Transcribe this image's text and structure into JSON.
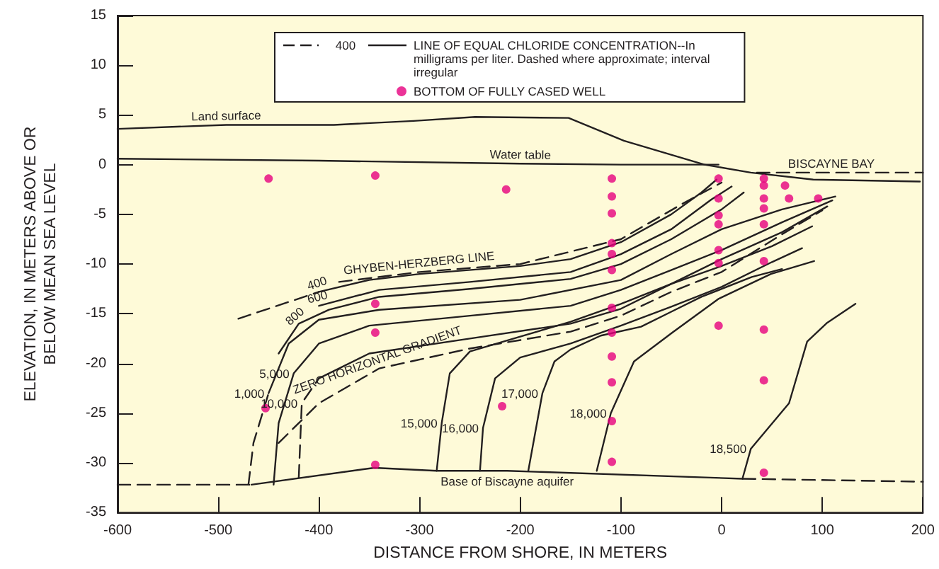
{
  "chart_data": {
    "type": "line",
    "xlabel": "DISTANCE FROM SHORE, IN METERS",
    "ylabel": "ELEVATION, IN METERS ABOVE OR BELOW MEAN SEA LEVEL",
    "xlim": [
      -600,
      200
    ],
    "xticks": [
      -600,
      -500,
      -400,
      -300,
      -200,
      -100,
      0,
      100,
      200
    ],
    "ylim": [
      -35,
      15
    ],
    "yticks": [
      -35,
      -30,
      -25,
      -20,
      -15,
      -10,
      -5,
      0,
      5,
      10,
      15
    ],
    "legend": "top right",
    "series": [
      {
        "color": "#231f20",
        "line_style": "solid",
        "x": [
          -600,
          -492,
          -385,
          -306,
          -245,
          -152,
          -97,
          -17,
          29,
          91,
          197
        ],
        "values": [
          3.6,
          4.0,
          4.0,
          4.4,
          4.8,
          4.7,
          2.4,
          0,
          -0.8,
          -1.5,
          -1.7
        ]
      },
      {
        "color": "#231f20",
        "line_style": "solid",
        "x": [
          -600,
          -400,
          -200,
          -100,
          -3
        ],
        "values": [
          0.6,
          0.4,
          0.1,
          0,
          0
        ]
      },
      {
        "color": "#231f20",
        "line_style": "dashed",
        "x": [
          35,
          109,
          200
        ],
        "values": [
          -0.8,
          -0.8,
          -0.8
        ]
      },
      {
        "color": "#231f20",
        "line_style": "solid",
        "x": [
          -467,
          -345,
          -283,
          -213,
          21
        ],
        "values": [
          -32.2,
          -30.5,
          -30.8,
          -30.8,
          -31.6
        ]
      },
      {
        "color": "#231f20",
        "line_style": "dashed",
        "x": [
          -600,
          -467
        ],
        "values": [
          -32.2,
          -32.2
        ]
      },
      {
        "color": "#231f20",
        "line_style": "dashed",
        "x": [
          21,
          200
        ],
        "values": [
          -31.6,
          -31.9
        ]
      },
      {
        "color": "#231f20",
        "line_style": "dashed",
        "x": [
          -480,
          -400
        ],
        "values": [
          -15.5,
          -12.8
        ]
      },
      {
        "color": "#231f20",
        "line_style": "solid",
        "x": [
          -400,
          -350,
          -300,
          -200,
          -150,
          -100,
          -50,
          -20,
          -5
        ],
        "values": [
          -12.8,
          -11.6,
          -11,
          -10.2,
          -9.5,
          -7.8,
          -5,
          -2.8,
          -1.5
        ]
      },
      {
        "color": "#231f20",
        "line_style": "dashed",
        "x": [
          -380,
          -300,
          -200,
          -100,
          -40,
          0
        ],
        "values": [
          -11.8,
          -10.8,
          -10,
          -7.5,
          -4,
          -1.8
        ]
      },
      {
        "color": "#231f20",
        "line_style": "solid",
        "x": [
          -400,
          -340,
          -250,
          -150,
          -100,
          -50,
          -10,
          10
        ],
        "values": [
          -14.2,
          -12.6,
          -11.8,
          -10.8,
          -9,
          -6.5,
          -3.5,
          -2.2
        ]
      },
      {
        "color": "#231f20",
        "line_style": "solid",
        "x": [
          -440,
          -420,
          -390,
          -340,
          -250,
          -150,
          -100,
          -50,
          0,
          22
        ],
        "values": [
          -19,
          -16,
          -14.6,
          -13.3,
          -12.5,
          -11.5,
          -10,
          -7.5,
          -4.5,
          -2.8
        ]
      },
      {
        "color": "#231f20",
        "line_style": "dashed",
        "x": [
          -470,
          -465,
          -450
        ],
        "values": [
          -32.2,
          -28,
          -23
        ]
      },
      {
        "color": "#231f20",
        "line_style": "solid",
        "x": [
          -450,
          -430,
          -400,
          -340,
          -200,
          -100,
          -50,
          0,
          60,
          113
        ],
        "values": [
          -23,
          -18,
          -15.6,
          -14.6,
          -13.6,
          -11.6,
          -9,
          -6.5,
          -4.5,
          -3.2
        ]
      },
      {
        "color": "#231f20",
        "line_style": "solid",
        "x": [
          -445,
          -440,
          -425,
          -400,
          -350,
          -250,
          -150,
          -100,
          -50,
          0,
          60,
          110
        ],
        "values": [
          -32.2,
          -26,
          -21,
          -18,
          -16.2,
          -15.2,
          -14.2,
          -12.6,
          -10.6,
          -8.6,
          -5.8,
          -3.6
        ]
      },
      {
        "color": "#231f20",
        "line_style": "dashed",
        "x": [
          -420,
          -417,
          -400
        ],
        "values": [
          -31.5,
          -24,
          -21.5
        ]
      },
      {
        "color": "#231f20",
        "line_style": "solid",
        "x": [
          -400,
          -350,
          -250,
          -150,
          -100,
          -50,
          0,
          60,
          105
        ],
        "values": [
          -21.5,
          -19,
          -17.5,
          -16,
          -14.5,
          -12,
          -9.5,
          -6.8,
          -4.2
        ]
      },
      {
        "color": "#231f20",
        "line_style": "dashed",
        "x": [
          -440,
          -400,
          -340,
          -250,
          -150,
          -100,
          -50,
          0,
          60,
          100
        ],
        "values": [
          -28,
          -24,
          -20.5,
          -18.5,
          -16.8,
          -15.2,
          -12.8,
          -10.8,
          -7,
          -4.6
        ]
      },
      {
        "color": "#231f20",
        "line_style": "solid",
        "x": [
          -283,
          -278,
          -270,
          -250,
          -200,
          -150,
          -100,
          -50,
          0,
          50,
          90
        ],
        "values": [
          -30.8,
          -26,
          -21,
          -18.8,
          -17.3,
          -15.8,
          -14,
          -12,
          -10.2,
          -8.2,
          -6.2
        ]
      },
      {
        "color": "#231f20",
        "line_style": "solid",
        "x": [
          -240,
          -237,
          -225,
          -200,
          -150,
          -100,
          -50,
          0,
          50,
          80
        ],
        "values": [
          -30.8,
          -26.5,
          -21.5,
          -19.4,
          -18,
          -16.2,
          -14.3,
          -12.3,
          -9.8,
          -8.4
        ]
      },
      {
        "color": "#231f20",
        "line_style": "solid",
        "x": [
          -192,
          -178,
          -166,
          -150,
          -120,
          -80,
          -50,
          -20,
          30,
          60
        ],
        "values": [
          -30.8,
          -23,
          -19.8,
          -18.6,
          -17.2,
          -16.3,
          -14.8,
          -13.3,
          -11.3,
          -10.5
        ]
      },
      {
        "color": "#231f20",
        "line_style": "solid",
        "x": [
          -124,
          -110,
          -87,
          -49,
          -3,
          49,
          92
        ],
        "values": [
          -30.8,
          -25,
          -19.8,
          -16.9,
          -13.5,
          -11,
          -9.7
        ]
      },
      {
        "color": "#231f20",
        "line_style": "solid",
        "x": [
          21,
          29,
          67,
          85,
          105,
          133
        ],
        "values": [
          -31.5,
          -28.6,
          -24,
          -17.8,
          -15.9,
          -14
        ]
      },
      {
        "type": "scatter",
        "name": "BOTTOM OF FULLY CASED WELL",
        "color": "#e6007e",
        "marker": "circle",
        "x": [
          -450,
          -344,
          -214,
          -109,
          -109,
          -109,
          -109,
          -109,
          -109,
          -109,
          -109,
          -109,
          -109,
          -109,
          -109,
          -3,
          -3,
          -3,
          -3,
          -3,
          -3,
          -3,
          42,
          42,
          42,
          42,
          42,
          42,
          42,
          42,
          42,
          63,
          67,
          96,
          -453,
          -344,
          -344,
          -344,
          -218
        ],
        "values": [
          -1.4,
          -1.1,
          -2.5,
          -1.4,
          -3.2,
          -4.9,
          -7.9,
          -9.0,
          -10.6,
          -14.4,
          -16.9,
          -19.3,
          -21.9,
          -25.8,
          -29.9,
          -1.4,
          -3.4,
          -5.1,
          -6.0,
          -8.6,
          -9.9,
          -16.2,
          -1.4,
          -2.1,
          -3.4,
          -4.4,
          -6.0,
          -9.7,
          -16.6,
          -21.7,
          -31.0,
          -2.1,
          -3.4,
          -3.4,
          -24.5,
          -14.0,
          -16.9,
          -30.2,
          -24.3
        ]
      }
    ],
    "annotations": [
      "400",
      "LINE OF EQUAL CHLORIDE CONCENTRATION--In milligrams per liter. Dashed where approximate; interval irregular",
      {
        "text": "Land surface",
        "x": -492,
        "y": 4.0
      },
      {
        "text": "Water table",
        "x": -200,
        "y": 0.1
      },
      {
        "text": "BISCAYNE BAY",
        "x": 109,
        "y": -0.8
      },
      {
        "text": "GHYBEN-HERZBERG LINE",
        "x": -300,
        "y": -10.8
      },
      {
        "text": "ZERO HORIZONTAL GRADIENT",
        "x": -340,
        "y": -20.5
      },
      {
        "text": "Base of Biscayne aquifer",
        "x": -213,
        "y": -30.8
      },
      {
        "text": "400",
        "x": -400,
        "y": -12.8
      },
      {
        "text": "600",
        "x": -400,
        "y": -14.2
      },
      {
        "text": "800",
        "x": -420,
        "y": -16
      },
      {
        "text": "1,000",
        "x": -450,
        "y": -23
      },
      {
        "text": "5,000",
        "x": -425,
        "y": -21
      },
      {
        "text": "10,000",
        "x": -417,
        "y": -24
      },
      {
        "text": "15,000",
        "x": -278,
        "y": -26
      },
      {
        "text": "16,000",
        "x": -237,
        "y": -26.5
      },
      {
        "text": "17,000",
        "x": -178,
        "y": -23
      },
      {
        "text": "18,000",
        "x": -110,
        "y": -25
      },
      {
        "text": "18,500",
        "x": 29,
        "y": -28.6
      }
    ]
  }
}
